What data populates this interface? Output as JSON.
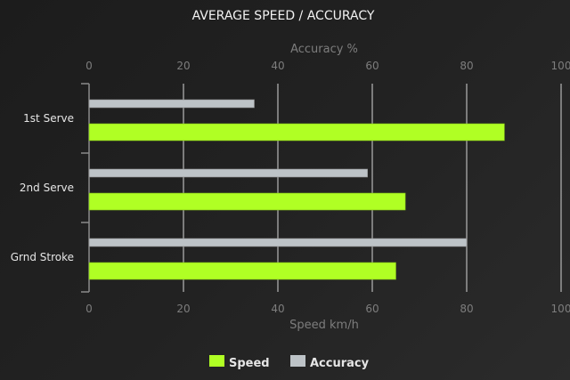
{
  "chart_data": {
    "type": "bar",
    "orientation": "horizontal",
    "title": "AVERAGE SPEED / ACCURACY",
    "categories": [
      "1st Serve",
      "2nd Serve",
      "Grnd Stroke"
    ],
    "series": [
      {
        "name": "Accuracy",
        "values": [
          35,
          59,
          80
        ],
        "color": "#bdc3c7"
      },
      {
        "name": "Speed",
        "values": [
          88,
          67,
          65
        ],
        "color": "#b0ff24"
      }
    ],
    "top_axis": {
      "label": "Accuracy %",
      "range": [
        0,
        100
      ],
      "ticks": [
        "0",
        "20",
        "40",
        "60",
        "80",
        "100"
      ]
    },
    "bottom_axis": {
      "label": "Speed km/h",
      "range": [
        0,
        100
      ],
      "ticks": [
        "0",
        "20",
        "40",
        "60",
        "80",
        "100"
      ]
    },
    "grid": true,
    "legend": {
      "placement": "bottom",
      "entries": [
        "Speed",
        "Accuracy"
      ]
    }
  }
}
